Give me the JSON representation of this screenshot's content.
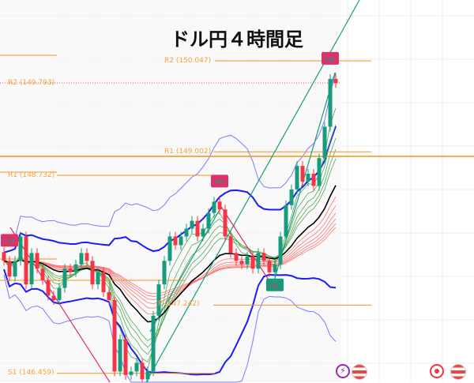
{
  "chart_data": {
    "type": "candlestick",
    "title": "ドル円４時間足",
    "closes": [
      147.75,
      147.57,
      147.75,
      148.03,
      147.48,
      147.84,
      147.66,
      147.53,
      147.35,
      147.3,
      147.44,
      147.66,
      147.62,
      147.71,
      147.84,
      147.75,
      147.48,
      147.62,
      147.39,
      147.3,
      146.48,
      146.85,
      146.44,
      146.48,
      146.58,
      146.39,
      146.48,
      147.12,
      147.48,
      147.75,
      148.03,
      147.93,
      148.03,
      148.12,
      148.21,
      148.03,
      148.12,
      148.3,
      148.43,
      148.34,
      148.03,
      147.84,
      147.75,
      147.71,
      147.8,
      147.66,
      147.84,
      147.75,
      147.62,
      147.71,
      148.03,
      148.39,
      148.57,
      148.84,
      148.66,
      148.75,
      148.61,
      148.93,
      149.29,
      149.84,
      149.79
    ],
    "ylim": [
      146.35,
      150.75
    ],
    "levels": [
      {
        "label": "R2 (150.047)",
        "value": 150.047
      },
      {
        "label": "R2 (149.793)",
        "value": 149.793
      },
      {
        "label": "R1 (149.002)",
        "value": 149.002
      },
      {
        "label": "R1 (148.732)",
        "value": 148.732
      },
      {
        "label": "P (147.242)",
        "value": 147.242
      },
      {
        "label": "S1 (146.459)",
        "value": 146.459
      }
    ],
    "markers": [
      {
        "label": "LH",
        "index": 1,
        "color": "#e0306a"
      },
      {
        "label": "HH",
        "index": 39,
        "color": "#e0306a"
      },
      {
        "label": "HL",
        "index": 49,
        "color": "#169c7c"
      },
      {
        "label": "HH",
        "index": 59,
        "color": "#e0306a"
      }
    ],
    "colors": {
      "up": "#169c7c",
      "down": "#f23645",
      "bands": "#1a1aff",
      "level": "#f7931a",
      "basis": "#000000"
    },
    "grid": true
  },
  "icons": [
    "lightning-icon",
    "us-flag-icon",
    "record-icon",
    "us-flag-icon"
  ]
}
